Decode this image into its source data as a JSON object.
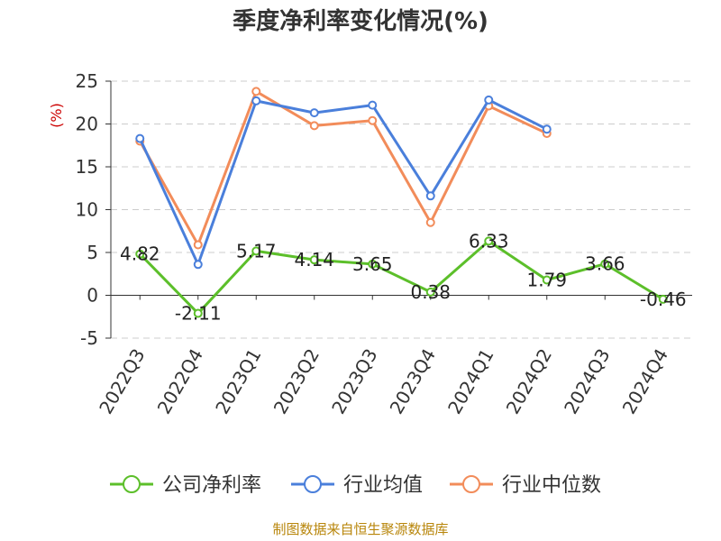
{
  "chart_data": {
    "type": "line",
    "title": "季度净利率变化情况(%)",
    "ylabel": "(%)",
    "ylim": [
      -5,
      25
    ],
    "yticks": [
      -5,
      0,
      5,
      10,
      15,
      20,
      25
    ],
    "grid": true,
    "legend_position": "bottom",
    "categories": [
      "2022Q3",
      "2022Q4",
      "2023Q1",
      "2023Q2",
      "2023Q3",
      "2023Q4",
      "2024Q1",
      "2024Q2",
      "2024Q3",
      "2024Q4"
    ],
    "series": [
      {
        "name": "公司净利率",
        "color": "#5cbf2a",
        "values": [
          4.82,
          -2.11,
          5.17,
          4.14,
          3.65,
          0.38,
          6.33,
          1.79,
          3.66,
          -0.46
        ],
        "labels": [
          "4.82",
          "-2.11",
          "5.17",
          "4.14",
          "3.65",
          "0.38",
          "6.33",
          "1.79",
          "3.66",
          "-0.46"
        ]
      },
      {
        "name": "行业均值",
        "color": "#4a7fdb",
        "values": [
          18.3,
          3.6,
          22.7,
          21.3,
          22.2,
          11.6,
          22.8,
          19.4,
          null,
          null
        ]
      },
      {
        "name": "行业中位数",
        "color": "#f28c5a",
        "values": [
          18.0,
          5.9,
          23.8,
          19.8,
          20.4,
          8.5,
          22.1,
          18.9,
          null,
          null
        ]
      }
    ]
  },
  "source": "制图数据来自恒生聚源数据库"
}
